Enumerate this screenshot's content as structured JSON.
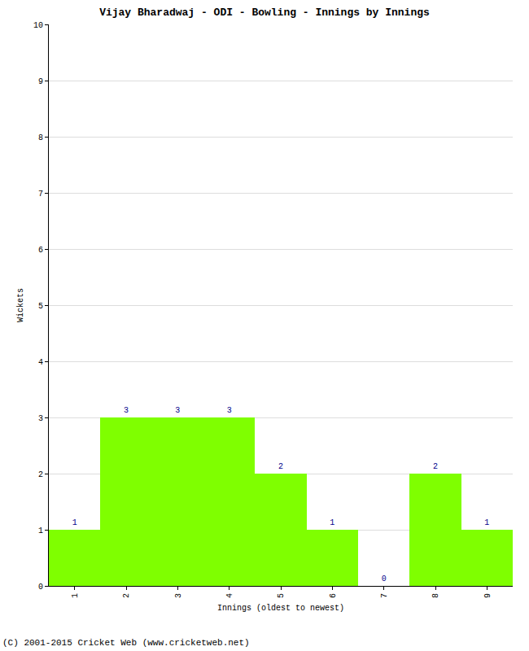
{
  "chart_data": {
    "type": "bar",
    "title": "Vijay Bharadwaj - ODI - Bowling - Innings by Innings",
    "x_label": "Innings (oldest to newest)",
    "y_label": "Wickets",
    "categories": [
      "1",
      "2",
      "3",
      "4",
      "5",
      "6",
      "7",
      "8",
      "9"
    ],
    "values": [
      1,
      3,
      3,
      3,
      2,
      1,
      0,
      2,
      1
    ],
    "color": "#7fff00",
    "ylim": [
      0,
      10
    ],
    "yticks": [
      0,
      1,
      2,
      3,
      4,
      5,
      6,
      7,
      8,
      9,
      10
    ],
    "grid": true,
    "data_labels": true,
    "annotations": [
      "(C) 2001-2015 Cricket Web (www.cricketweb.net)"
    ]
  }
}
